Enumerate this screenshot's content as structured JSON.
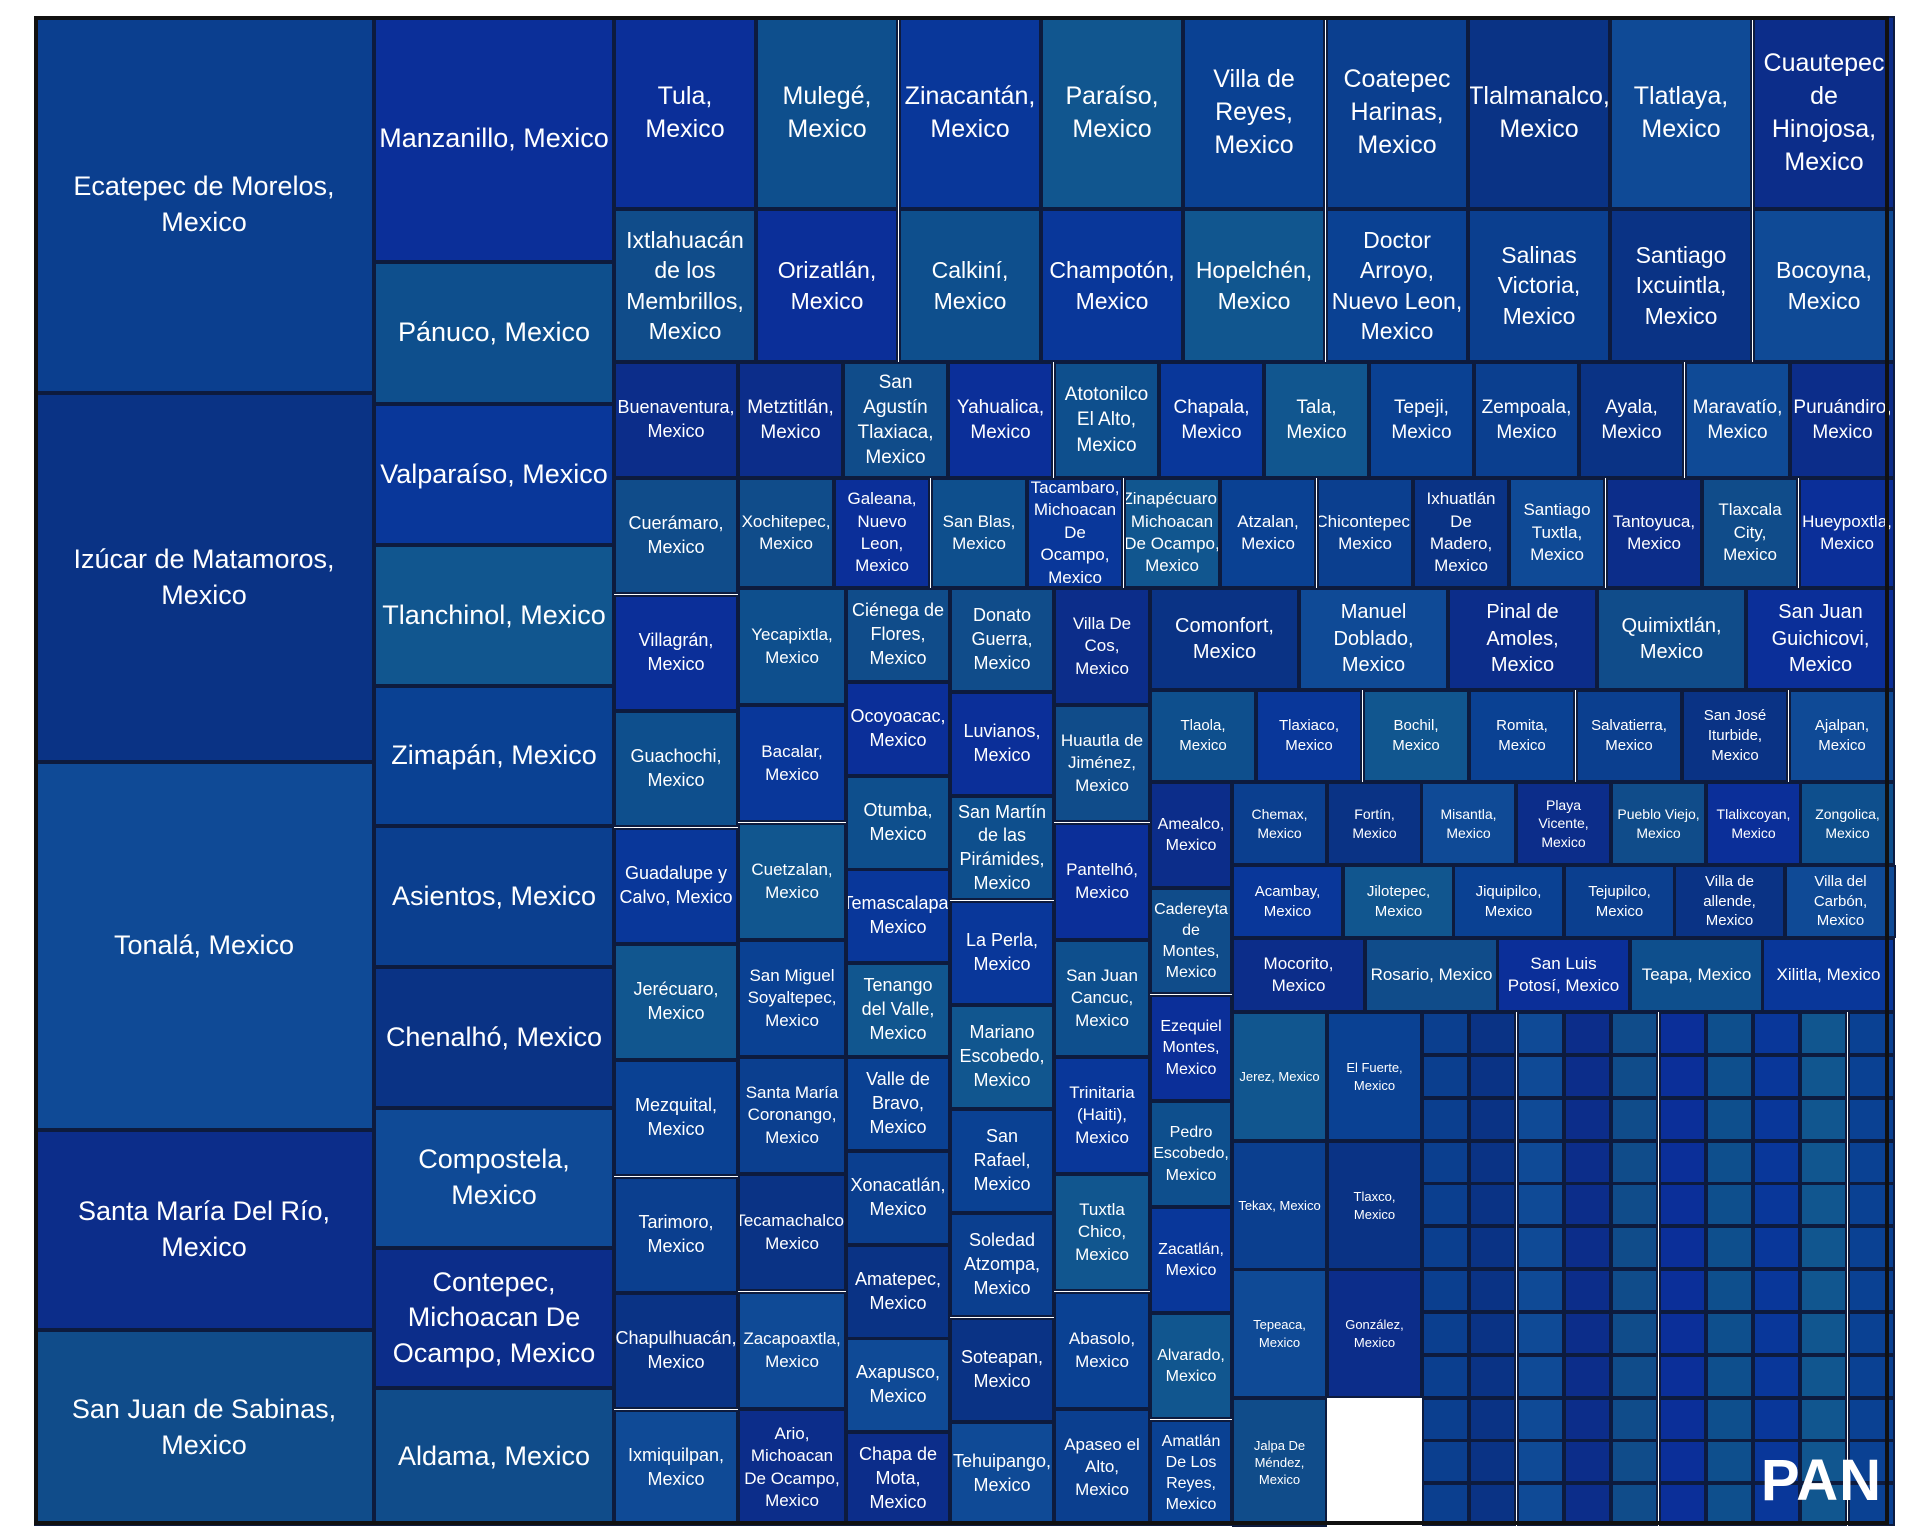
{
  "chart_data": {
    "type": "treemap",
    "party_label": "PAN",
    "colors": [
      "#0b3f8f",
      "#0a3385",
      "#0f4a96",
      "#0c2d8a",
      "#104c8a",
      "#0b2f99",
      "#0e4f8d",
      "#09379a",
      "#11568f",
      "#0a4193"
    ],
    "items": [
      {
        "label": "Ecatepec de Morelos, Mexico",
        "value": 11
      },
      {
        "label": "Izúcar de Matamoros, Mexico",
        "value": 11
      },
      {
        "label": "Tonalá, Mexico",
        "value": 11
      },
      {
        "label": "Santa María Del Río, Mexico",
        "value": 6
      },
      {
        "label": "San Juan de Sabinas, Mexico",
        "value": 6
      },
      {
        "label": "Manzanillo, Mexico",
        "value": 5
      },
      {
        "label": "Pánuco, Mexico",
        "value": 3
      },
      {
        "label": "Valparaíso, Mexico",
        "value": 3
      },
      {
        "label": "Tlanchinol, Mexico",
        "value": 3
      },
      {
        "label": "Zimapán, Mexico",
        "value": 3
      },
      {
        "label": "Asientos, Mexico",
        "value": 3
      },
      {
        "label": "Chenalhó, Mexico",
        "value": 3
      },
      {
        "label": "Compostela, Mexico",
        "value": 3
      },
      {
        "label": "Contepec, Michoacan De Ocampo, Mexico",
        "value": 3
      },
      {
        "label": "Aldama, Mexico",
        "value": 3
      },
      {
        "label": "Tula, Mexico",
        "value": 2
      },
      {
        "label": "Mulegé, Mexico",
        "value": 2
      },
      {
        "label": "Zinacantán, Mexico",
        "value": 2
      },
      {
        "label": "Paraíso, Mexico",
        "value": 2
      },
      {
        "label": "Villa de Reyes, Mexico",
        "value": 2
      },
      {
        "label": "Coatepec Harinas, Mexico",
        "value": 2
      },
      {
        "label": "Tlalmanalco, Mexico",
        "value": 2
      },
      {
        "label": "Tlatlaya, Mexico",
        "value": 2
      },
      {
        "label": "Cuautepec de Hinojosa, Mexico",
        "value": 2
      },
      {
        "label": "Ixtlahuacán de los Membrillos, Mexico",
        "value": 2
      },
      {
        "label": "Orizatlán, Mexico",
        "value": 2
      },
      {
        "label": "Calkiní, Mexico",
        "value": 2
      },
      {
        "label": "Champotón, Mexico",
        "value": 2
      },
      {
        "label": "Hopelchén, Mexico",
        "value": 2
      },
      {
        "label": "Doctor Arroyo, Nuevo Leon, Mexico",
        "value": 2
      },
      {
        "label": "Salinas Victoria, Mexico",
        "value": 2
      },
      {
        "label": "Santiago Ixcuintla, Mexico",
        "value": 2
      },
      {
        "label": "Bocoyna, Mexico",
        "value": 2
      },
      {
        "label": "Buenaventura, Mexico",
        "value": 1
      },
      {
        "label": "Cuerámaro, Mexico",
        "value": 1
      },
      {
        "label": "Villagrán, Mexico",
        "value": 1
      },
      {
        "label": "Guachochi, Mexico",
        "value": 1
      },
      {
        "label": "Guadalupe y Calvo, Mexico",
        "value": 1
      },
      {
        "label": "Jerécuaro, Mexico",
        "value": 1
      },
      {
        "label": "Mezquital, Mexico",
        "value": 1
      },
      {
        "label": "Tarimoro, Mexico",
        "value": 1
      },
      {
        "label": "Chapulhuacán, Mexico",
        "value": 1
      },
      {
        "label": "Ixmiquilpan, Mexico",
        "value": 1
      },
      {
        "label": "Metztitlán, Mexico",
        "value": 1
      },
      {
        "label": "San Agustín Tlaxiaca, Mexico",
        "value": 1
      },
      {
        "label": "Yahualica, Mexico",
        "value": 1
      },
      {
        "label": "Atotonilco El Alto, Mexico",
        "value": 1
      },
      {
        "label": "Chapala, Mexico",
        "value": 1
      },
      {
        "label": "Tala, Mexico",
        "value": 1
      },
      {
        "label": "Tepeji, Mexico",
        "value": 1
      },
      {
        "label": "Zempoala, Mexico",
        "value": 1
      },
      {
        "label": "Ayala, Mexico",
        "value": 1
      },
      {
        "label": "Maravatío, Mexico",
        "value": 1
      },
      {
        "label": "Puruándiro, Mexico",
        "value": 1
      },
      {
        "label": "Xochitepec, Mexico",
        "value": 1
      },
      {
        "label": "Galeana, Nuevo Leon, Mexico",
        "value": 1
      },
      {
        "label": "San Blas, Mexico",
        "value": 1
      },
      {
        "label": "Tacambaro, Michoacan De Ocampo, Mexico",
        "value": 1
      },
      {
        "label": "Zinapécuaro, Michoacan De Ocampo, Mexico",
        "value": 1
      },
      {
        "label": "Atzalan, Mexico",
        "value": 1
      },
      {
        "label": "Chicontepec, Mexico",
        "value": 1
      },
      {
        "label": "Ixhuatlán De Madero, Mexico",
        "value": 1
      },
      {
        "label": "Santiago Tuxtla, Mexico",
        "value": 1
      },
      {
        "label": "Tantoyuca, Mexico",
        "value": 1
      },
      {
        "label": "Tlaxcala City, Mexico",
        "value": 1
      },
      {
        "label": "Hueypoxtla, Mexico",
        "value": 1
      },
      {
        "label": "Yecapixtla, Mexico",
        "value": 1
      },
      {
        "label": "Bacalar, Mexico",
        "value": 1
      },
      {
        "label": "Cuetzalan, Mexico",
        "value": 1
      },
      {
        "label": "San Miguel Soyaltepec, Mexico",
        "value": 1
      },
      {
        "label": "Santa María Coronango, Mexico",
        "value": 1
      },
      {
        "label": "Tecamachalco, Mexico",
        "value": 1
      },
      {
        "label": "Zacapoaxtla, Mexico",
        "value": 1
      },
      {
        "label": "Ario, Michoacan De Ocampo, Mexico",
        "value": 1
      },
      {
        "label": "Ciénega de Flores, Mexico",
        "value": 1
      },
      {
        "label": "Ocoyoacac, Mexico",
        "value": 1
      },
      {
        "label": "Otumba, Mexico",
        "value": 1
      },
      {
        "label": "Temascalapa, Mexico",
        "value": 1
      },
      {
        "label": "Tenango del Valle, Mexico",
        "value": 1
      },
      {
        "label": "Valle de Bravo, Mexico",
        "value": 1
      },
      {
        "label": "Xonacatlán, Mexico",
        "value": 1
      },
      {
        "label": "Amatepec, Mexico",
        "value": 1
      },
      {
        "label": "Axapusco, Mexico",
        "value": 1
      },
      {
        "label": "Chapa de Mota, Mexico",
        "value": 1
      },
      {
        "label": "Donato Guerra, Mexico",
        "value": 1
      },
      {
        "label": "Luvianos, Mexico",
        "value": 1
      },
      {
        "label": "San Martín de las Pirámides, Mexico",
        "value": 1
      },
      {
        "label": "La Perla, Mexico",
        "value": 1
      },
      {
        "label": "Mariano Escobedo, Mexico",
        "value": 1
      },
      {
        "label": "San Rafael, Mexico",
        "value": 1
      },
      {
        "label": "Soledad Atzompa, Mexico",
        "value": 1
      },
      {
        "label": "Soteapan, Mexico",
        "value": 1
      },
      {
        "label": "Tehuipango, Mexico",
        "value": 1
      },
      {
        "label": "Villa De Cos, Mexico",
        "value": 1
      },
      {
        "label": "Huautla de Jiménez, Mexico",
        "value": 1
      },
      {
        "label": "Pantelhó, Mexico",
        "value": 1
      },
      {
        "label": "San Juan Cancuc, Mexico",
        "value": 1
      },
      {
        "label": "Trinitaria (Haiti), Mexico",
        "value": 1
      },
      {
        "label": "Tuxtla Chico, Mexico",
        "value": 1
      },
      {
        "label": "Abasolo, Mexico",
        "value": 1
      },
      {
        "label": "Apaseo el Alto, Mexico",
        "value": 1
      },
      {
        "label": "Comonfort, Mexico",
        "value": 1
      },
      {
        "label": "Manuel Doblado, Mexico",
        "value": 1
      },
      {
        "label": "Pinal de Amoles, Mexico",
        "value": 1
      },
      {
        "label": "Quimixtlán, Mexico",
        "value": 1
      },
      {
        "label": "San Juan Guichicovi, Mexico",
        "value": 1
      },
      {
        "label": "Tlaola, Mexico",
        "value": 1
      },
      {
        "label": "Tlaxiaco, Mexico",
        "value": 1
      },
      {
        "label": "Bochil, Mexico",
        "value": 1
      },
      {
        "label": "Romita, Mexico",
        "value": 1
      },
      {
        "label": "Salvatierra, Mexico",
        "value": 1
      },
      {
        "label": "San José Iturbide, Mexico",
        "value": 1
      },
      {
        "label": "Ajalpan, Mexico",
        "value": 1
      },
      {
        "label": "Amealco, Mexico",
        "value": 1
      },
      {
        "label": "Cadereyta de Montes, Mexico",
        "value": 1
      },
      {
        "label": "Ezequiel Montes, Mexico",
        "value": 1
      },
      {
        "label": "Pedro Escobedo, Mexico",
        "value": 1
      },
      {
        "label": "Zacatlán, Mexico",
        "value": 1
      },
      {
        "label": "Alvarado, Mexico",
        "value": 1
      },
      {
        "label": "Amatlán De Los Reyes, Mexico",
        "value": 1
      },
      {
        "label": "Chemax, Mexico",
        "value": 1
      },
      {
        "label": "Fortín, Mexico",
        "value": 1
      },
      {
        "label": "Misantla, Mexico",
        "value": 1
      },
      {
        "label": "Playa Vicente, Mexico",
        "value": 1
      },
      {
        "label": "Pueblo Viejo, Mexico",
        "value": 1
      },
      {
        "label": "Tlalixcoyan, Mexico",
        "value": 1
      },
      {
        "label": "Zongolica, Mexico",
        "value": 1
      },
      {
        "label": "Acambay, Mexico",
        "value": 1
      },
      {
        "label": "Jilotepec, Mexico",
        "value": 1
      },
      {
        "label": "Jiquipilco, Mexico",
        "value": 1
      },
      {
        "label": "Tejupilco, Mexico",
        "value": 1
      },
      {
        "label": "Villa de allende, Mexico",
        "value": 1
      },
      {
        "label": "Villa del Carbón, Mexico",
        "value": 1
      },
      {
        "label": "Mocorito, Mexico",
        "value": 1
      },
      {
        "label": "Rosario, Mexico",
        "value": 1
      },
      {
        "label": "San Luis Potosí, Mexico",
        "value": 1
      },
      {
        "label": "Teapa, Mexico",
        "value": 1
      },
      {
        "label": "Xilitla, Mexico",
        "value": 1
      },
      {
        "label": "Jerez, Mexico",
        "value": 1
      },
      {
        "label": "El Fuerte, Mexico",
        "value": 1
      },
      {
        "label": "Tekax, Mexico",
        "value": 1
      },
      {
        "label": "Tlaxco, Mexico",
        "value": 1
      },
      {
        "label": "Tepeaca, Mexico",
        "value": 1
      },
      {
        "label": "González, Mexico",
        "value": 1
      },
      {
        "label": "Jalpa De Méndez, Mexico",
        "value": 1
      }
    ]
  }
}
